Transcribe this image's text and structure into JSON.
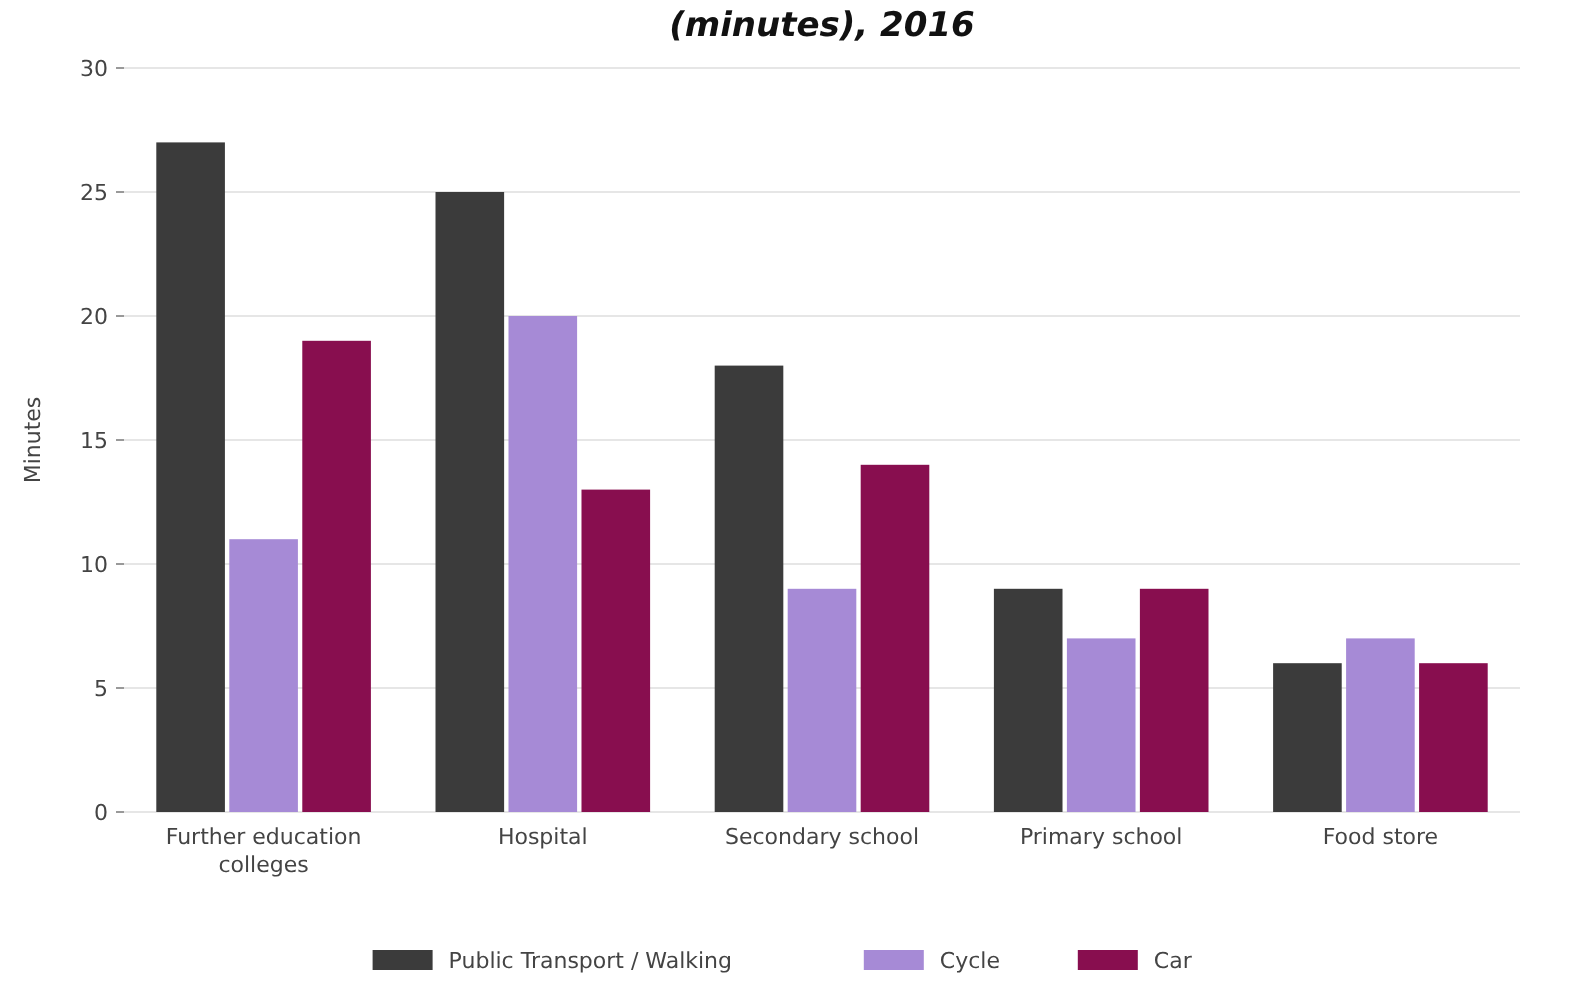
{
  "chart_data": {
    "type": "bar",
    "title": "(minutes), 2016",
    "ylabel": "Minutes",
    "categories": [
      "Further education colleges",
      "Hospital",
      "Secondary school",
      "Primary school",
      "Food store"
    ],
    "series": [
      {
        "name": "Public Transport / Walking",
        "color": "#3b3b3b",
        "values": [
          27,
          25,
          18,
          9,
          6
        ]
      },
      {
        "name": "Cycle",
        "color": "#a68ad6",
        "values": [
          11,
          20,
          9,
          7,
          7
        ]
      },
      {
        "name": "Car",
        "color": "#880e4f",
        "values": [
          19,
          13,
          14,
          9,
          6
        ]
      }
    ],
    "ylim": [
      0,
      30
    ],
    "yticks": [
      0,
      5,
      10,
      15,
      20,
      25,
      30
    ],
    "grid": "y",
    "legend": "bottom"
  }
}
